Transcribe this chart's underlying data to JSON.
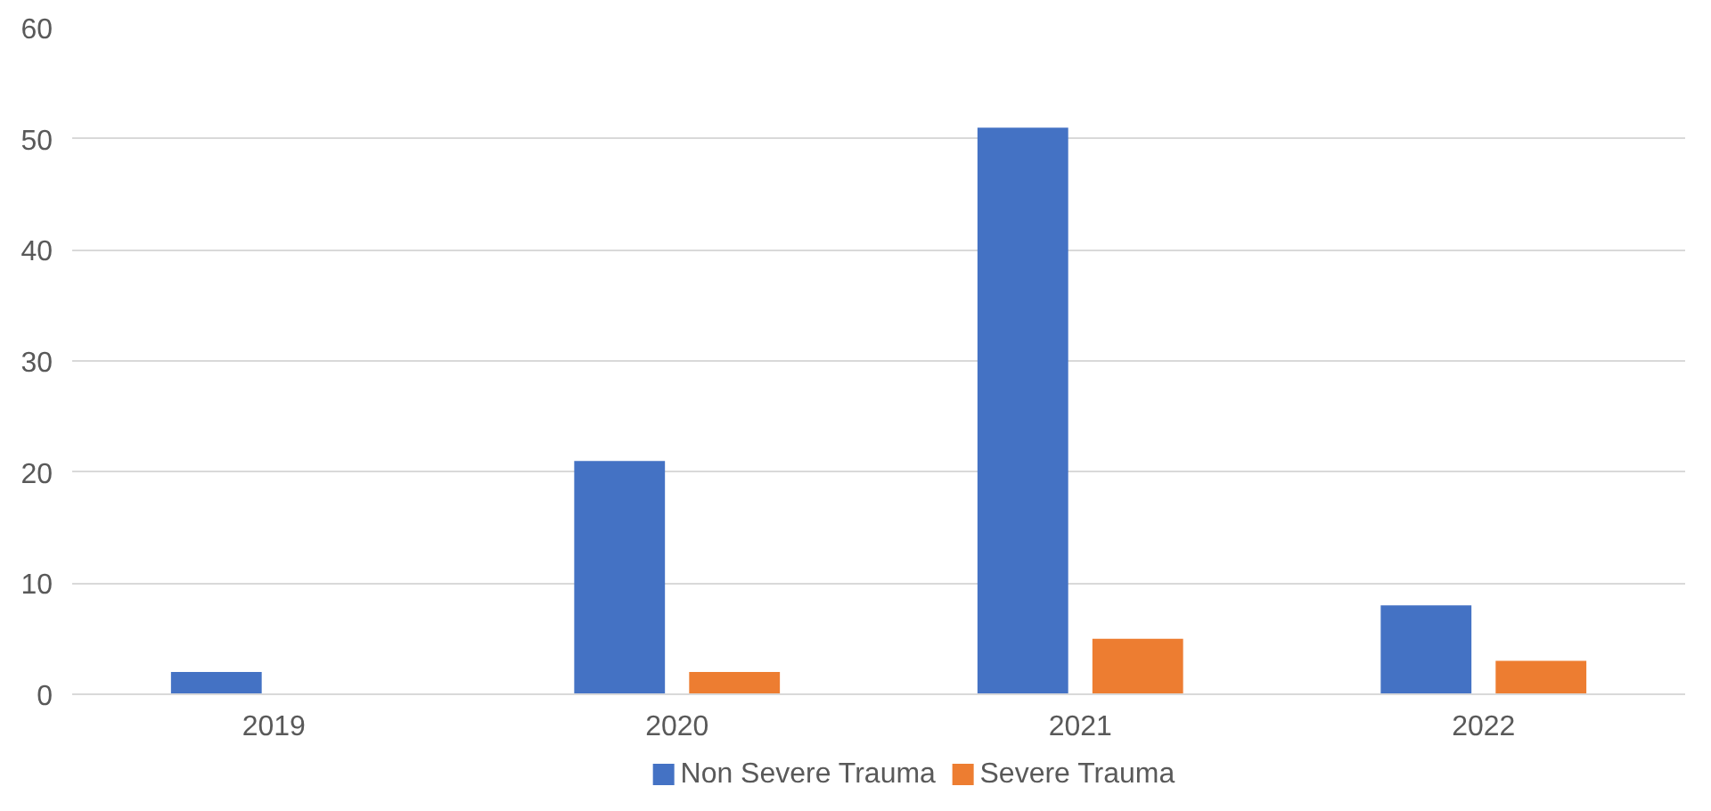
{
  "chart_data": {
    "type": "bar",
    "categories": [
      "2019",
      "2020",
      "2021",
      "2022"
    ],
    "series": [
      {
        "name": "Non Severe Trauma",
        "color": "#4472c4",
        "values": [
          2,
          21,
          51,
          8
        ]
      },
      {
        "name": "Severe Trauma",
        "color": "#ed7d31",
        "values": [
          0,
          2,
          5,
          3
        ]
      }
    ],
    "ylim": [
      0,
      60
    ],
    "yticks": [
      0,
      10,
      20,
      30,
      40,
      50,
      60
    ],
    "grid": "y",
    "legend": "bottom"
  }
}
